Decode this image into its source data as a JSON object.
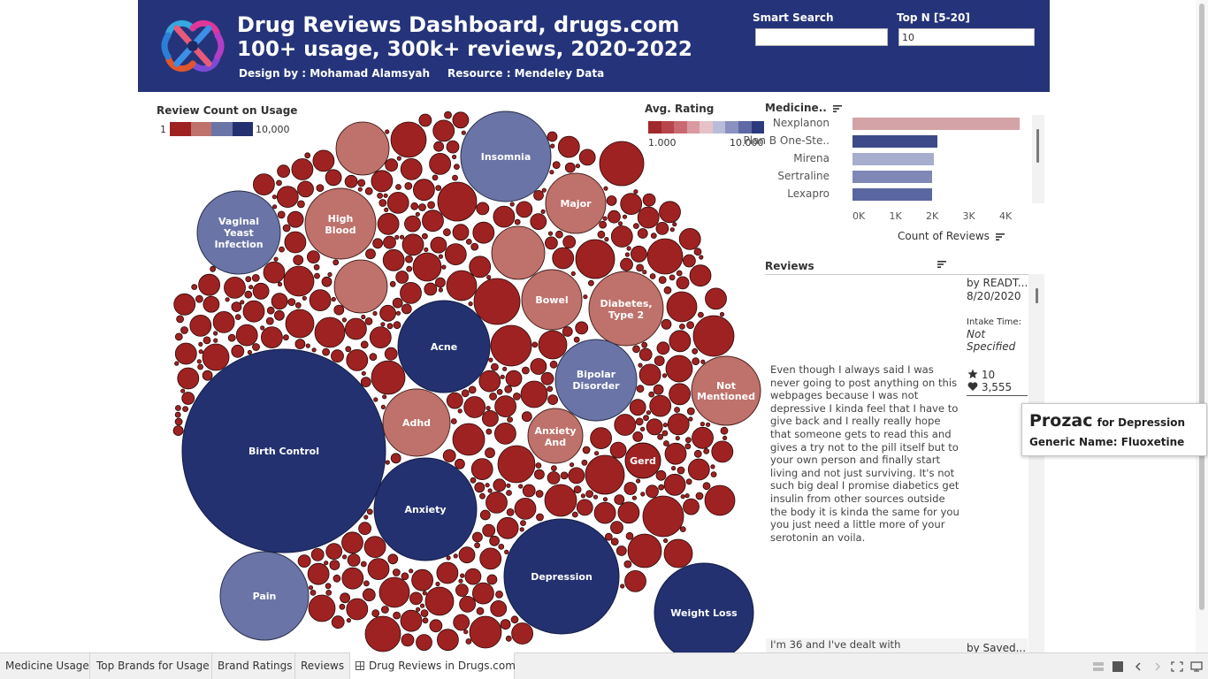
{
  "header": {
    "title": "Drug Reviews Dashboard, drugs.com",
    "subtitle": "100+ usage, 300k+ reviews, 2020-2022",
    "designer": "Design by : Mohamad Alamsyah",
    "resource": "Resource  : Mendeley Data",
    "smart_search": {
      "label": "Smart Search",
      "value": ""
    },
    "top_n": {
      "label": "Top N [5-20]",
      "value": "10"
    }
  },
  "legends": {
    "review_count": {
      "title": "Review Count on Usage",
      "min": "1",
      "max": "10,000"
    },
    "avg_rating": {
      "title": "Avg. Rating",
      "min": "1.000",
      "max": "10.000"
    }
  },
  "colors": {
    "banner": "#25347a",
    "navy": "#233170",
    "slate": "#6a74a6",
    "rose": "#bf716b",
    "red": "#9e2222"
  },
  "bubble_labels": {
    "insomnia": "Insomnia",
    "major": "Major",
    "vaginal_l1": "Vaginal",
    "vaginal_l2": "Yeast",
    "vaginal_l3": "Infection",
    "high_blood_l1": "High",
    "high_blood_l2": "Blood",
    "bowel": "Bowel",
    "diabetes_l1": "Diabetes,",
    "diabetes_l2": "Type 2",
    "acne": "Acne",
    "bipolar_l1": "Bipolar",
    "bipolar_l2": "Disorder",
    "not_mentioned_l1": "Not",
    "not_mentioned_l2": "Mentioned",
    "birth_control": "Birth Control",
    "adhd": "Adhd",
    "anxiety_and_l1": "Anxiety",
    "anxiety_and_l2": "And",
    "gerd": "Gerd",
    "anxiety": "Anxiety",
    "depression": "Depression",
    "pain": "Pain",
    "weight_loss": "Weight Loss"
  },
  "medicine_chart": {
    "header": "Medicine..",
    "axis_label": "Count of Reviews",
    "ticks": [
      "0K",
      "1K",
      "2K",
      "3K",
      "4K"
    ]
  },
  "chart_data": {
    "type": "bar",
    "orientation": "horizontal",
    "categories": [
      "Nexplanon",
      "Plan B One-Ste..",
      "Mirena",
      "Sertraline",
      "Lexapro"
    ],
    "values": [
      4550,
      2320,
      2220,
      2170,
      2170
    ],
    "bar_colors": [
      "#d3a3a7",
      "#3c4a8a",
      "#a7adcc",
      "#7f88b6",
      "#5a66a0"
    ],
    "xlabel": "Count of Reviews",
    "xlim": [
      0,
      4700
    ],
    "grid": false
  },
  "reviews": {
    "header": "Reviews",
    "first": {
      "author": "by READT...",
      "date": "8/20/2020",
      "intake_label": "Intake Time:",
      "intake_l1": "Not",
      "intake_l2": "Specified",
      "rating": "10",
      "likes": "3,555",
      "text": "Even though I always said I was never going to post anything on this webpages because I was not depressive I kinda feel that I have to give back and I really really hope that someone gets to read this and gives a try not to the pill itself but to your own person and finally start living and not just surviving. It's not such big deal I promise diabetics get insulin from other sources outside the body it is kinda the same for you you just need a little more of your serotonin an voila."
    },
    "second": {
      "text_start": "I'm 36 and I've dealt with",
      "author": "by Saved..."
    }
  },
  "tooltip": {
    "drug": "Prozac",
    "condition": "for Depression",
    "generic": "Generic Name: Fluoxetine"
  },
  "tabs": [
    "Medicine Usage",
    "Top Brands for Usage",
    "Brand Ratings",
    "Reviews",
    "Drug Reviews in Drugs.com"
  ]
}
